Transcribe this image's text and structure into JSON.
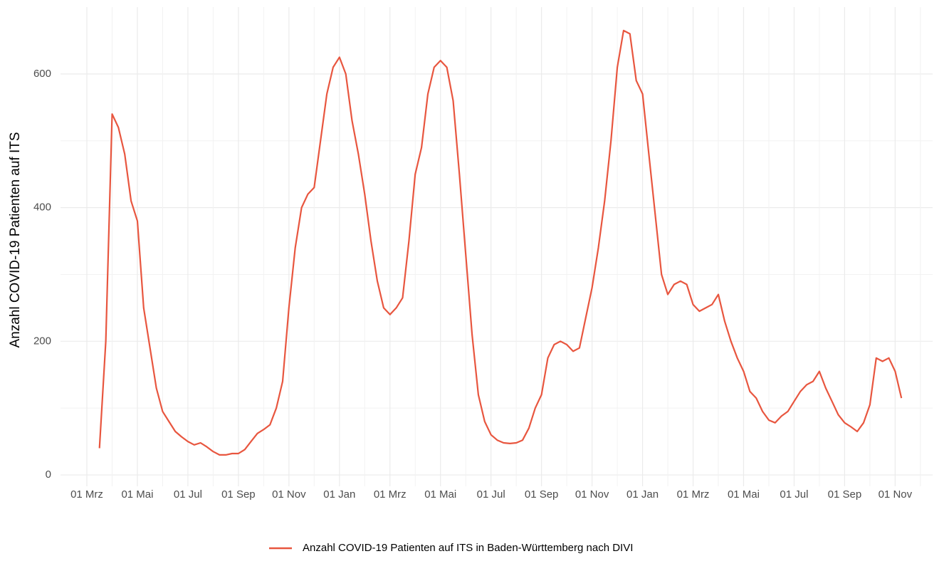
{
  "chart_data": {
    "type": "line",
    "y_label": "Anzahl COVID-19 Patienten auf ITS",
    "categories": [
      "01 Mrz",
      null,
      null,
      null,
      null,
      null,
      null,
      null,
      "01 Mai",
      null,
      null,
      null,
      null,
      null,
      null,
      null,
      "01 Jul",
      null,
      null,
      null,
      null,
      null,
      null,
      null,
      "01 Sep",
      null,
      null,
      null,
      null,
      null,
      null,
      null,
      "01 Nov",
      null,
      null,
      null,
      null,
      null,
      null,
      null,
      "01 Jan",
      null,
      null,
      null,
      null,
      null,
      null,
      null,
      "01 Mrz",
      null,
      null,
      null,
      null,
      null,
      null,
      null,
      "01 Mai",
      null,
      null,
      null,
      null,
      null,
      null,
      null,
      "01 Jul",
      null,
      null,
      null,
      null,
      null,
      null,
      null,
      "01 Sep",
      null,
      null,
      null,
      null,
      null,
      null,
      null,
      "01 Nov",
      null,
      null,
      null,
      null,
      null,
      null,
      null,
      "01 Jan",
      null,
      null,
      null,
      null,
      null,
      null,
      null,
      "01 Mrz",
      null,
      null,
      null,
      null,
      null,
      null,
      null,
      "01 Mai",
      null,
      null,
      null,
      null,
      null,
      null,
      null,
      "01 Jul",
      null,
      null,
      null,
      null,
      null,
      null,
      null,
      "01 Sep",
      null,
      null,
      null,
      null,
      null,
      null,
      null,
      "01 Nov",
      null
    ],
    "series": [
      {
        "name": "Anzahl COVID-19 Patienten auf ITS in Baden-Württemberg nach DIVI",
        "color": "#e8563f",
        "values": [
          null,
          null,
          40,
          200,
          540,
          520,
          480,
          410,
          380,
          250,
          190,
          130,
          95,
          80,
          65,
          57,
          50,
          45,
          48,
          42,
          35,
          30,
          30,
          32,
          32,
          38,
          50,
          62,
          68,
          75,
          100,
          140,
          250,
          340,
          400,
          420,
          430,
          500,
          570,
          610,
          625,
          600,
          530,
          480,
          420,
          350,
          290,
          250,
          240,
          250,
          265,
          350,
          450,
          490,
          570,
          610,
          620,
          610,
          560,
          450,
          330,
          210,
          120,
          80,
          60,
          52,
          48,
          47,
          48,
          52,
          70,
          100,
          120,
          175,
          195,
          200,
          195,
          185,
          190,
          235,
          280,
          340,
          410,
          500,
          610,
          665,
          660,
          590,
          570,
          480,
          390,
          300,
          270,
          285,
          290,
          285,
          255,
          245,
          250,
          255,
          270,
          230,
          200,
          175,
          155,
          125,
          115,
          95,
          82,
          78,
          88,
          95,
          110,
          125,
          135,
          140,
          155,
          130,
          110,
          90,
          78,
          72,
          65,
          78,
          105,
          175,
          170,
          175,
          155,
          115
        ]
      }
    ],
    "ylim": [
      -17,
      700
    ],
    "yticks": [
      0,
      200,
      400,
      600
    ],
    "grid": true,
    "legend": "bottom"
  }
}
